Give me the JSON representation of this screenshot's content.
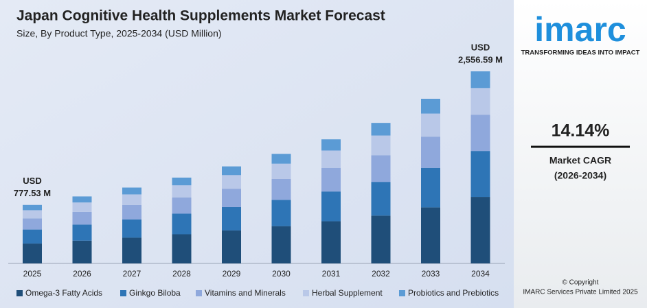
{
  "chart_data": {
    "type": "stacked_bar",
    "title": "Japan Cognitive Health Supplements Market Forecast",
    "subtitle": "Size, By Product Type, 2025-2034 (USD Million)",
    "categories": [
      "2025",
      "2026",
      "2027",
      "2028",
      "2029",
      "2030",
      "2031",
      "2032",
      "2033",
      "2034"
    ],
    "series": [
      {
        "name": "Omega-3 Fatty Acids",
        "color": "#1f4e79",
        "values": [
          264,
          303,
          343,
          388,
          439,
          496,
          561,
          636,
          745,
          885
        ]
      },
      {
        "name": "Ginkgo Biloba",
        "color": "#2e75b6",
        "values": [
          187,
          214,
          242,
          274,
          310,
          350,
          396,
          449,
          526,
          611
        ]
      },
      {
        "name": "Vitamins and Minerals",
        "color": "#8fa8dc",
        "values": [
          148,
          169,
          192,
          217,
          245,
          277,
          314,
          355,
          416,
          483
        ]
      },
      {
        "name": "Herbal Supplement",
        "color": "#b9c8e8",
        "values": [
          109,
          125,
          141,
          160,
          181,
          204,
          231,
          262,
          307,
          355
        ]
      },
      {
        "name": "Probiotics and Prebiotics",
        "color": "#5b9bd5",
        "values": [
          70,
          80,
          91,
          103,
          116,
          131,
          149,
          168,
          197,
          222
        ]
      }
    ],
    "annotations": [
      [
        "USD",
        "777.53 M"
      ],
      [
        "USD",
        "2,556.59 M"
      ]
    ]
  },
  "sidebar": {
    "logo": "imarc",
    "tagline": "TRANSFORMING IDEAS INTO IMPACT",
    "cagr": "14.14%",
    "cagr_label": "Market CAGR",
    "cagr_period": "(2026-2034)",
    "copyright": "© Copyright",
    "company": "IMARC Services Private Limited 2025"
  }
}
